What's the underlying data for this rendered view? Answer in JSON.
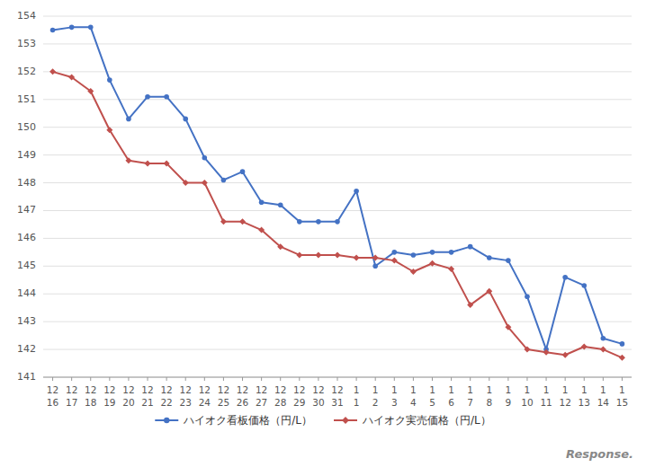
{
  "chart_data": {
    "type": "line",
    "categories": [
      [
        "12",
        "16"
      ],
      [
        "12",
        "17"
      ],
      [
        "12",
        "18"
      ],
      [
        "12",
        "19"
      ],
      [
        "12",
        "20"
      ],
      [
        "12",
        "21"
      ],
      [
        "12",
        "22"
      ],
      [
        "12",
        "23"
      ],
      [
        "12",
        "24"
      ],
      [
        "12",
        "25"
      ],
      [
        "12",
        "26"
      ],
      [
        "12",
        "27"
      ],
      [
        "12",
        "28"
      ],
      [
        "12",
        "29"
      ],
      [
        "12",
        "30"
      ],
      [
        "12",
        "31"
      ],
      [
        "1",
        "1"
      ],
      [
        "1",
        "2"
      ],
      [
        "1",
        "3"
      ],
      [
        "1",
        "4"
      ],
      [
        "1",
        "5"
      ],
      [
        "1",
        "6"
      ],
      [
        "1",
        "7"
      ],
      [
        "1",
        "8"
      ],
      [
        "1",
        "9"
      ],
      [
        "1",
        "10"
      ],
      [
        "1",
        "11"
      ],
      [
        "1",
        "12"
      ],
      [
        "1",
        "13"
      ],
      [
        "1",
        "14"
      ],
      [
        "1",
        "15"
      ]
    ],
    "series": [
      {
        "name": "ハイオク看板価格（円/L）",
        "color": "#4472c4",
        "marker": "circle",
        "values": [
          153.5,
          153.6,
          153.6,
          151.7,
          150.3,
          151.1,
          151.1,
          150.3,
          148.9,
          148.1,
          148.4,
          147.3,
          147.2,
          146.6,
          146.6,
          146.6,
          147.7,
          145.0,
          145.5,
          145.4,
          145.5,
          145.5,
          145.7,
          145.3,
          145.2,
          143.9,
          142.0,
          144.6,
          144.3,
          142.4,
          142.2
        ]
      },
      {
        "name": "ハイオク実売価格（円/L）",
        "color": "#c0504d",
        "marker": "diamond",
        "values": [
          152.0,
          151.8,
          151.3,
          149.9,
          148.8,
          148.7,
          148.7,
          148.0,
          148.0,
          146.6,
          146.6,
          146.3,
          145.7,
          145.4,
          145.4,
          145.4,
          145.3,
          145.3,
          145.2,
          144.8,
          145.1,
          144.9,
          143.6,
          144.1,
          142.8,
          142.0,
          141.9,
          141.8,
          142.1,
          142.0,
          141.7
        ]
      }
    ],
    "ylim": [
      141,
      154
    ],
    "yticks": [
      141,
      142,
      143,
      144,
      145,
      146,
      147,
      148,
      149,
      150,
      151,
      152,
      153,
      154
    ],
    "grid": true,
    "legend": "bottom",
    "annotations": [
      "Response."
    ]
  }
}
